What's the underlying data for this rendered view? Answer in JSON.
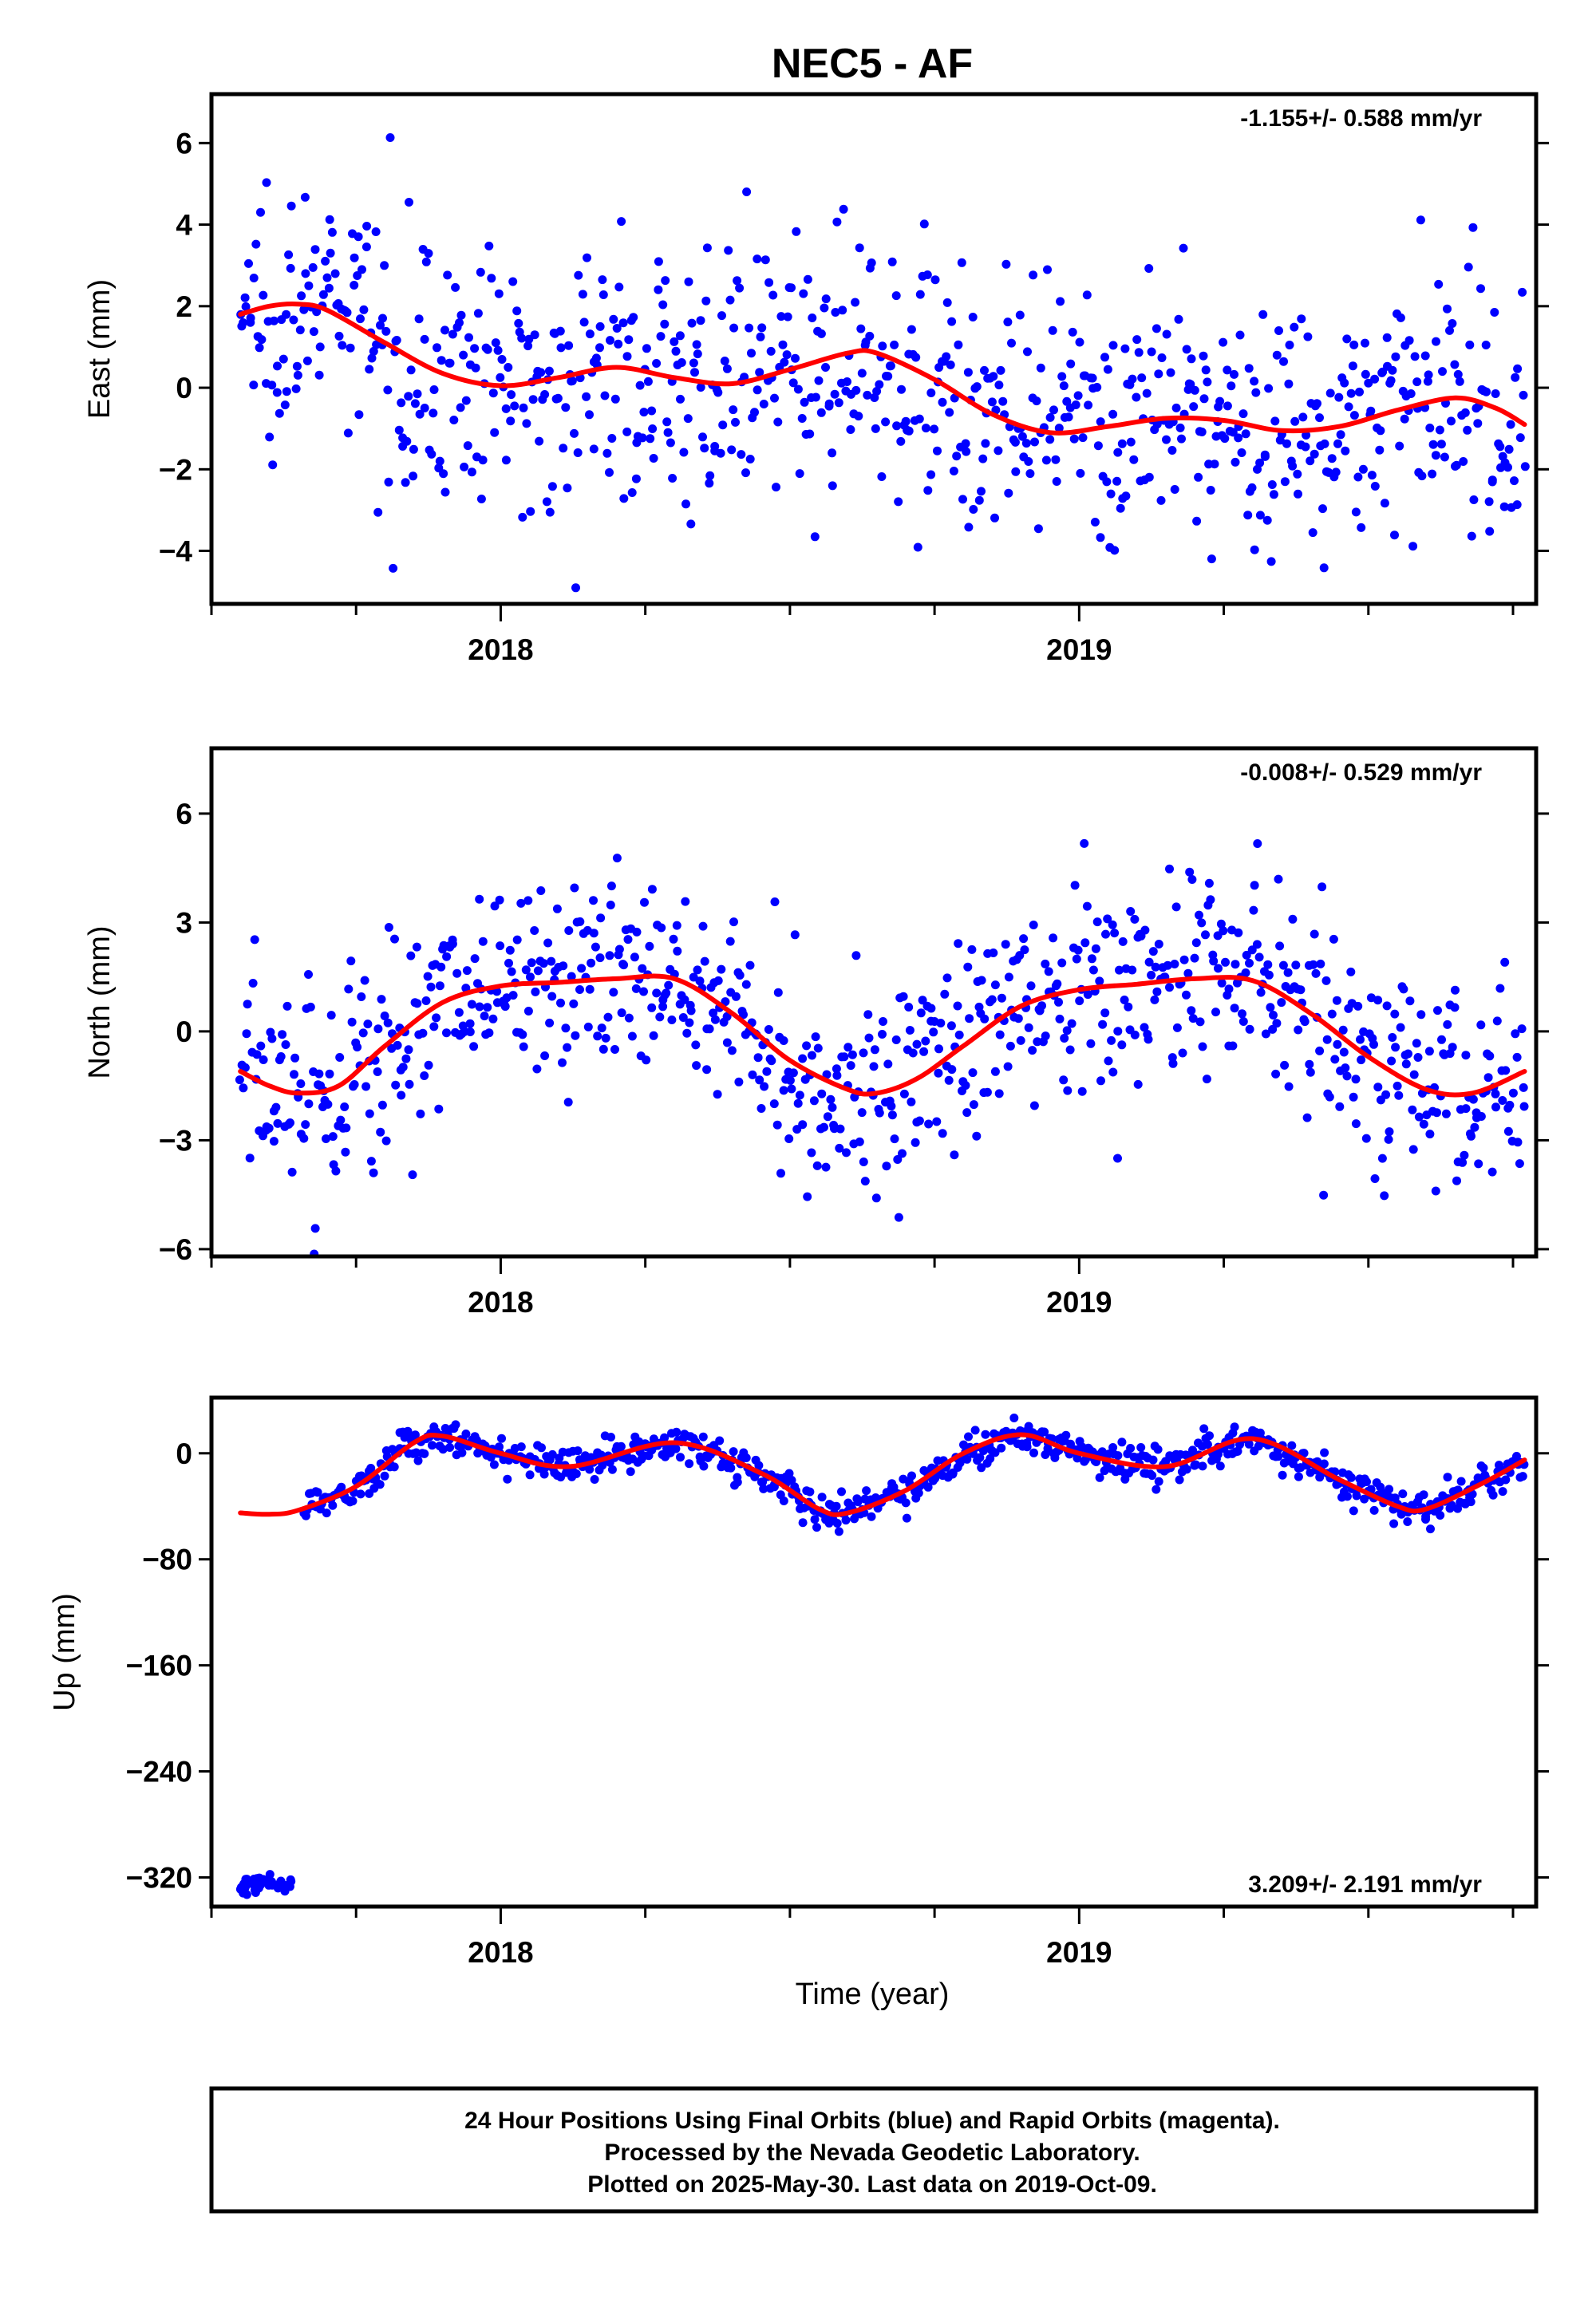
{
  "title": "NEC5 - AF",
  "colors": {
    "points": "#0000ff",
    "fit": "#ff0000",
    "frame": "#000000"
  },
  "xlabel": "Time (year)",
  "footer": {
    "lines": [
      "24 Hour Positions Using Final Orbits (blue) and Rapid Orbits (magenta).",
      "Processed by the Nevada Geodetic Laboratory.",
      "Plotted on 2025-May-30. Last data on 2019-Oct-09."
    ]
  },
  "chart_data": [
    {
      "type": "scatter",
      "ylabel": "East (mm)",
      "rate": "-1.155+/- 0.588 mm/yr",
      "xlim": [
        2017.5,
        2019.79
      ],
      "ylim": [
        -5.3,
        7.2
      ],
      "yticks": [
        -4,
        -2,
        0,
        2,
        4,
        6
      ],
      "ytick_labels": [
        "−4",
        "−2",
        "0",
        "2",
        "4",
        "6"
      ],
      "xticks": [
        2018,
        2019
      ],
      "xtick_labels": [
        "2018",
        "2019"
      ],
      "x_range": [
        2017.55,
        2019.77
      ],
      "n_points": 820,
      "trend_mm_per_yr": -1.155,
      "scatter_sigma_mm": 1.55,
      "fit": {
        "type": "line",
        "x": [
          2017.55,
          2017.6,
          2017.65,
          2017.7,
          2017.8,
          2017.9,
          2018.0,
          2018.1,
          2018.2,
          2018.3,
          2018.4,
          2018.5,
          2018.6,
          2018.65,
          2018.75,
          2018.85,
          2018.95,
          2019.05,
          2019.15,
          2019.25,
          2019.35,
          2019.45,
          2019.55,
          2019.65,
          2019.72,
          2019.77
        ],
        "y": [
          1.8,
          2.0,
          2.05,
          1.9,
          1.1,
          0.35,
          0.05,
          0.25,
          0.5,
          0.25,
          0.1,
          0.45,
          0.85,
          0.85,
          0.2,
          -0.65,
          -1.1,
          -0.95,
          -0.75,
          -0.8,
          -1.05,
          -0.95,
          -0.55,
          -0.25,
          -0.5,
          -0.9
        ]
      }
    },
    {
      "type": "scatter",
      "ylabel": "North (mm)",
      "rate": "-0.008+/- 0.529 mm/yr",
      "xlim": [
        2017.5,
        2019.79
      ],
      "ylim": [
        -6.2,
        7.8
      ],
      "yticks": [
        -6,
        -3,
        0,
        3,
        6
      ],
      "ytick_labels": [
        "−6",
        "−3",
        "0",
        "3",
        "6"
      ],
      "xticks": [
        2018,
        2019
      ],
      "xtick_labels": [
        "2018",
        "2019"
      ],
      "x_range": [
        2017.55,
        2019.77
      ],
      "n_points": 820,
      "trend_mm_per_yr": -0.008,
      "scatter_sigma_mm": 1.5,
      "fit": {
        "type": "line",
        "x": [
          2017.55,
          2017.6,
          2017.65,
          2017.72,
          2017.8,
          2017.9,
          2018.0,
          2018.1,
          2018.2,
          2018.3,
          2018.4,
          2018.5,
          2018.6,
          2018.65,
          2018.72,
          2018.8,
          2018.9,
          2019.0,
          2019.1,
          2019.2,
          2019.3,
          2019.4,
          2019.5,
          2019.6,
          2019.68,
          2019.77
        ],
        "y": [
          -1.1,
          -1.5,
          -1.7,
          -1.5,
          -0.4,
          0.8,
          1.25,
          1.35,
          1.45,
          1.45,
          0.5,
          -0.8,
          -1.6,
          -1.7,
          -1.3,
          -0.4,
          0.7,
          1.15,
          1.3,
          1.45,
          1.4,
          0.5,
          -0.7,
          -1.6,
          -1.7,
          -1.1
        ]
      }
    },
    {
      "type": "scatter",
      "ylabel": "Up (mm)",
      "rate": "3.209+/- 2.191 mm/yr",
      "xlim": [
        2017.5,
        2019.79
      ],
      "ylim": [
        -342,
        42
      ],
      "yticks": [
        -320,
        -240,
        -160,
        -80,
        0
      ],
      "ytick_labels": [
        "−320",
        "−240",
        "−160",
        "−80",
        "0"
      ],
      "xticks": [
        2018,
        2019
      ],
      "xtick_labels": [
        "2018",
        "2019"
      ],
      "x_range": [
        2017.66,
        2019.77
      ],
      "n_points": 760,
      "trend_mm_per_yr": 3.209,
      "scatter_sigma_mm": 6.5,
      "offset_cluster": {
        "x_range": [
          2017.55,
          2017.64
        ],
        "y_center": -325,
        "sigma": 3.5,
        "n_points": 40
      },
      "fit": {
        "type": "line",
        "x": [
          2017.55,
          2017.6,
          2017.65,
          2017.75,
          2017.85,
          2017.9,
          2018.0,
          2018.12,
          2018.3,
          2018.45,
          2018.55,
          2018.6,
          2018.7,
          2018.8,
          2018.9,
          2019.0,
          2019.15,
          2019.3,
          2019.45,
          2019.55,
          2019.6,
          2019.7,
          2019.77
        ],
        "y": [
          -45,
          -46,
          -43,
          -25,
          8,
          13,
          0,
          -10,
          8,
          -15,
          -42,
          -45,
          -28,
          0,
          14,
          0,
          -10,
          11,
          -20,
          -40,
          -42,
          -22,
          -5
        ]
      }
    }
  ]
}
